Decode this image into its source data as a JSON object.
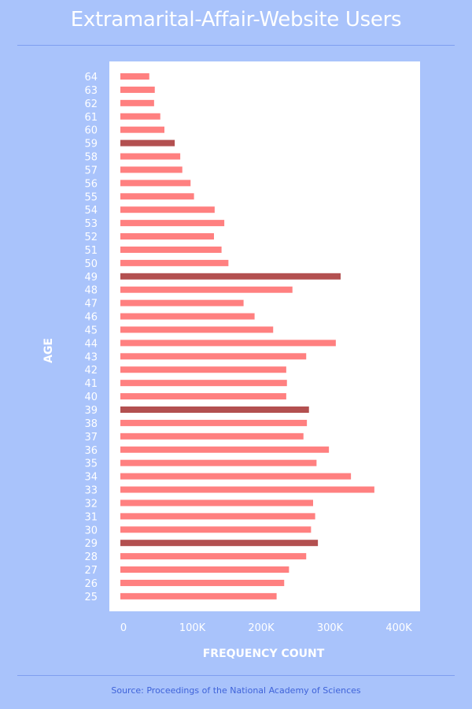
{
  "chart_data": {
    "type": "bar",
    "orientation": "horizontal",
    "title": "Extramarital-Affair-Website Users",
    "xlabel": "FREQUENCY COUNT",
    "ylabel": "AGE",
    "xlim": [
      0,
      400000
    ],
    "xticks": [
      "0",
      "100K",
      "200K",
      "300K",
      "400K"
    ],
    "xtick_values": [
      0,
      100000,
      200000,
      300000,
      400000
    ],
    "grid": false,
    "colors": {
      "default": "#ff8080",
      "highlight": "#b35050",
      "background": "#a9c3fb",
      "plot": "#ffffff"
    },
    "categories": [
      64,
      63,
      62,
      61,
      60,
      59,
      58,
      57,
      56,
      55,
      54,
      53,
      52,
      51,
      50,
      49,
      48,
      47,
      46,
      45,
      44,
      43,
      42,
      41,
      40,
      39,
      38,
      37,
      36,
      35,
      34,
      33,
      32,
      31,
      30,
      29,
      28,
      27,
      26,
      25
    ],
    "values": [
      42000,
      50000,
      49000,
      58000,
      64000,
      79000,
      87000,
      90000,
      102000,
      107000,
      137000,
      151000,
      136000,
      147000,
      157000,
      320000,
      250000,
      179000,
      195000,
      222000,
      313000,
      270000,
      241000,
      242000,
      241000,
      274000,
      271000,
      266000,
      303000,
      285000,
      335000,
      369000,
      280000,
      283000,
      277000,
      287000,
      270000,
      245000,
      238000,
      227000
    ],
    "highlighted": [
      59,
      49,
      39,
      29
    ]
  },
  "source": "Source: Proceedings of the National Academy of Sciences"
}
